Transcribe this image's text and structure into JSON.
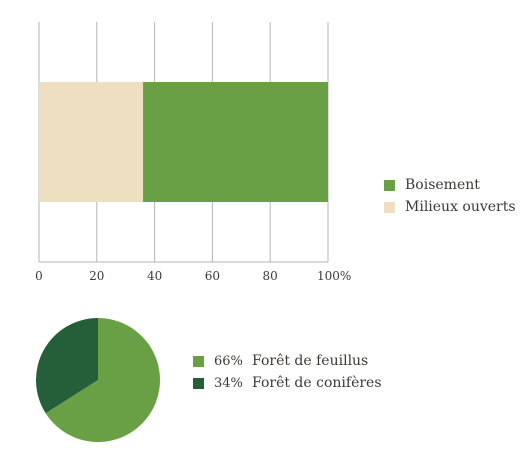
{
  "chart_data": [
    {
      "type": "bar",
      "orientation": "horizontal",
      "stacked": true,
      "series": [
        {
          "name": "Milieux ouverts",
          "values": [
            36
          ],
          "color": "#eedfc1"
        },
        {
          "name": "Boisement",
          "values": [
            64
          ],
          "color": "#69a046"
        }
      ],
      "xlim": [
        0,
        100
      ],
      "xticks": [
        "0",
        "20",
        "40",
        "60",
        "80",
        "100%"
      ],
      "grid": "vertical",
      "legend": "right"
    },
    {
      "type": "pie",
      "slices": [
        {
          "label": "Forêt de feuillus",
          "value": 66,
          "pct_label": "66%",
          "color": "#69a046"
        },
        {
          "label": "Forêt de conifères",
          "value": 34,
          "pct_label": "34%",
          "color": "#245f39"
        }
      ],
      "legend": "right"
    }
  ],
  "legend_bar": {
    "items": [
      {
        "label": "Boisement",
        "color": "#69a046"
      },
      {
        "label": "Milieux ouverts",
        "color": "#eedfc1"
      }
    ]
  },
  "legend_pie": {
    "items": [
      {
        "pct": "66%",
        "label": "Forêt de feuillus",
        "color": "#69a046"
      },
      {
        "pct": "34%",
        "label": "Forêt de conifères",
        "color": "#245f39"
      }
    ]
  }
}
